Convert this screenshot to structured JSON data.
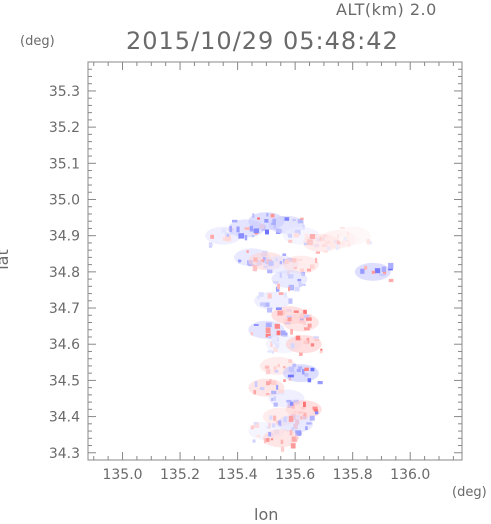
{
  "header": {
    "altitude_label": "ALT(km) 2.0",
    "timestamp": "2015/10/29 05:48:42",
    "y_unit": "(deg)",
    "x_unit": "(deg)"
  },
  "chart_data": {
    "type": "heatmap",
    "title": "2015/10/29 05:48:42",
    "subtitle": "ALT(km) 2.0",
    "xlabel": "lon",
    "ylabel": "lat",
    "x_unit": "(deg)",
    "y_unit": "(deg)",
    "xlim": [
      134.88,
      136.18
    ],
    "ylim": [
      34.28,
      35.38
    ],
    "x_ticks": [
      "135.0",
      "135.2",
      "135.4",
      "135.6",
      "135.8",
      "136.0"
    ],
    "y_ticks": [
      "34.3",
      "34.4",
      "34.5",
      "34.6",
      "34.7",
      "34.8",
      "34.9",
      "35.0",
      "35.1",
      "35.2",
      "35.3"
    ],
    "grid": false,
    "colors": {
      "negative": "#6f74ff",
      "positive": "#ff5a5a",
      "neutral": "#ffffff"
    },
    "regions": [
      {
        "lon": 135.35,
        "lat": 34.9,
        "value": -0.3
      },
      {
        "lon": 135.43,
        "lat": 34.92,
        "value": -0.5
      },
      {
        "lon": 135.5,
        "lat": 34.94,
        "value": -0.6
      },
      {
        "lon": 135.57,
        "lat": 34.93,
        "value": -0.5
      },
      {
        "lon": 135.62,
        "lat": 34.9,
        "value": -0.2
      },
      {
        "lon": 135.69,
        "lat": 34.88,
        "value": 0.3
      },
      {
        "lon": 135.75,
        "lat": 34.89,
        "value": 0.2
      },
      {
        "lon": 135.8,
        "lat": 34.9,
        "value": 0.1
      },
      {
        "lon": 135.87,
        "lat": 34.8,
        "value": -0.6
      },
      {
        "lon": 135.45,
        "lat": 34.84,
        "value": -0.4
      },
      {
        "lon": 135.5,
        "lat": 34.83,
        "value": 0.4
      },
      {
        "lon": 135.55,
        "lat": 34.82,
        "value": -0.3
      },
      {
        "lon": 135.62,
        "lat": 34.82,
        "value": 0.3
      },
      {
        "lon": 135.58,
        "lat": 34.78,
        "value": -0.4
      },
      {
        "lon": 135.52,
        "lat": 34.72,
        "value": -0.3
      },
      {
        "lon": 135.58,
        "lat": 34.68,
        "value": 0.5
      },
      {
        "lon": 135.62,
        "lat": 34.66,
        "value": 0.4
      },
      {
        "lon": 135.5,
        "lat": 34.64,
        "value": -0.5
      },
      {
        "lon": 135.56,
        "lat": 34.6,
        "value": -0.2
      },
      {
        "lon": 135.63,
        "lat": 34.6,
        "value": 0.5
      },
      {
        "lon": 135.54,
        "lat": 34.54,
        "value": 0.3
      },
      {
        "lon": 135.62,
        "lat": 34.52,
        "value": -0.6
      },
      {
        "lon": 135.5,
        "lat": 34.48,
        "value": 0.4
      },
      {
        "lon": 135.57,
        "lat": 34.45,
        "value": -0.3
      },
      {
        "lon": 135.63,
        "lat": 34.42,
        "value": 0.5
      },
      {
        "lon": 135.55,
        "lat": 34.4,
        "value": 0.3
      },
      {
        "lon": 135.6,
        "lat": 34.38,
        "value": -0.4
      },
      {
        "lon": 135.5,
        "lat": 34.36,
        "value": -0.2
      },
      {
        "lon": 135.55,
        "lat": 34.34,
        "value": 0.4
      }
    ]
  }
}
